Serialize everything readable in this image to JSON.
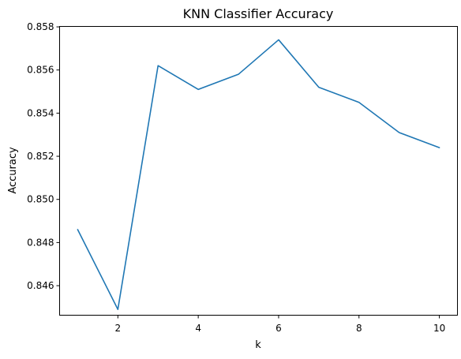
{
  "chart_data": {
    "type": "line",
    "title": "KNN Classifier Accuracy",
    "xlabel": "k",
    "ylabel": "Accuracy",
    "xlim": [
      0.55,
      10.45
    ],
    "ylim": [
      0.84463,
      0.85802
    ],
    "x_ticks": [
      2,
      4,
      6,
      8,
      10
    ],
    "y_ticks": [
      0.846,
      0.848,
      0.85,
      0.852,
      0.854,
      0.856,
      0.858
    ],
    "y_tick_labels": [
      "0.846",
      "0.848",
      "0.850",
      "0.852",
      "0.854",
      "0.856",
      "0.858"
    ],
    "grid": false,
    "series": [
      {
        "color": "#1f77b4",
        "x": [
          1,
          2,
          3,
          4,
          5,
          6,
          7,
          8,
          9,
          10
        ],
        "y": [
          0.8486,
          0.8449,
          0.8562,
          0.8551,
          0.8558,
          0.8574,
          0.8552,
          0.8545,
          0.8531,
          0.8524
        ]
      }
    ]
  }
}
